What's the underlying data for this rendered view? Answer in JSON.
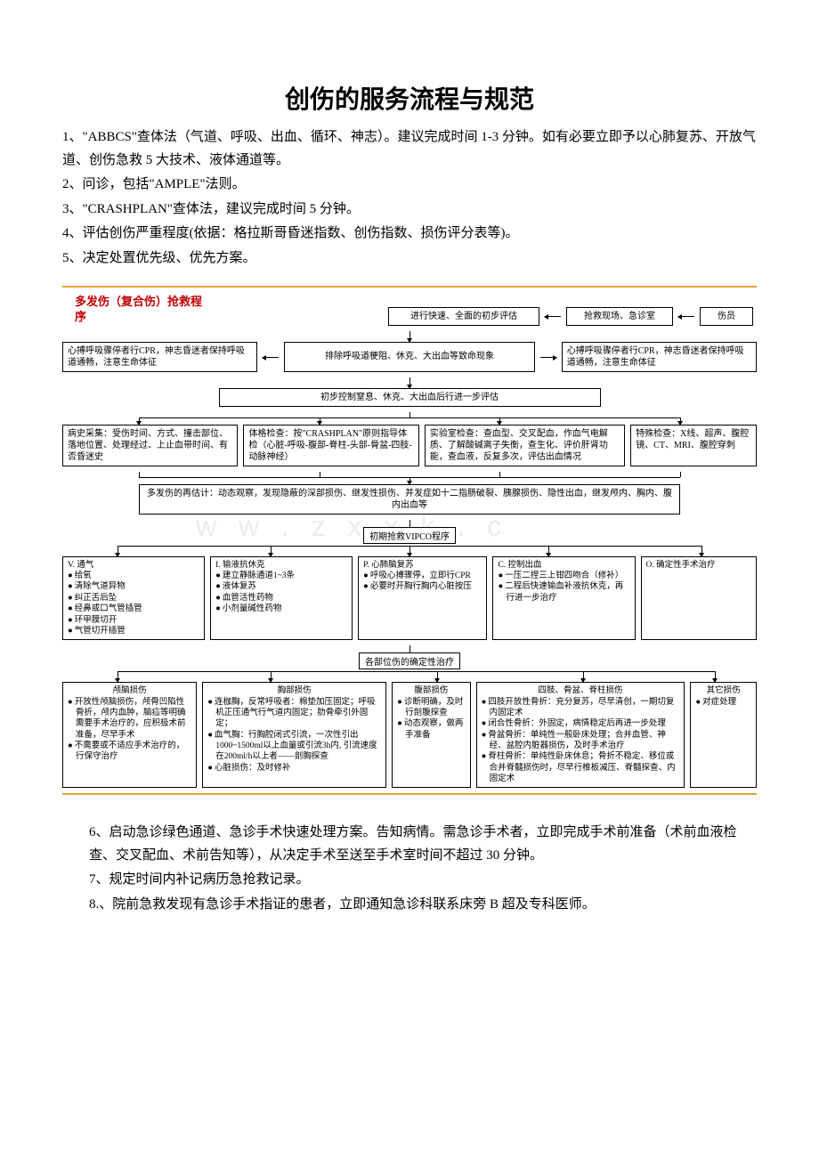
{
  "title": "创伤的服务流程与规范",
  "intro": {
    "p1": "1、\"ABBCS\"查体法（气道、呼吸、出血、循环、神志）。建议完成时间 1-3 分钟。如有必要立即予以心肺复苏、开放气道、创伤急救 5 大技术、液体通道等。",
    "p2": "2、问诊，包括\"AMPLE\"法则。",
    "p3": "3、\"CRASHPLAN\"查体法，建议完成时间 5 分钟。",
    "p4": "4、评估创伤严重程度(依据：格拉斯哥昏迷指数、创伤指数、损伤评分表等)。",
    "p5": "5、决定处置优先级、优先方案。"
  },
  "chart": {
    "title_l1": "多发伤（复合伤）抢救程",
    "title_l2": "序",
    "row1": {
      "assess": "进行快速、全面的初步评估",
      "scene": "抢救现场、急诊室",
      "patient": "伤员"
    },
    "row2": {
      "left": "心搏呼吸骤停者行CPR，神志昏迷者保持呼吸道通畅，注意生命体征",
      "mid": "排除呼吸道梗阻、休克、大出血等致命现象",
      "right": "心搏呼吸骤停者行CPR，神志昏迷者保持呼吸道通畅，注意生命体征"
    },
    "row3": "初步控制窒息、休克、大出血后行进一步评估",
    "row4": {
      "c1": "病史采集：受伤时间、方式、撞击部位、落地位置、处理经过、上止血带时间、有否昏迷史",
      "c2": "体格检查：按\"CRASHPLAN\"原则指导体检（心脏-呼吸-腹部-脊柱-头部-骨盆-四肢-动脉神经）",
      "c3": "实验室检查：查血型、交叉配血，作血气电解质、了解酸碱离子失衡，查生化、评价肝肾功能，查血液，反复多次，评估出血情况",
      "c4": "特殊检查：X线、超声、腹腔镜、CT、MRI、腹腔穿刺"
    },
    "row5": "多发伤的再估计：动态观察，发现隐蔽的深部损伤、继发性损伤、并发症如十二指肠破裂、胰腺损伤、隐性出血，继发颅内、胸内、腹内出血等",
    "vipco_label": "初期抢救VIPCO程序",
    "vipco": {
      "v_head": "V. 通气",
      "v_items": [
        "给氧",
        "清除气道异物",
        "纠正舌后坠",
        "经鼻或口气管插管",
        "环甲膜切开",
        "气管切开插管"
      ],
      "i_head": "I. 输液抗休克",
      "i_items": [
        "建立静脉通道1~3条",
        "液体复苏",
        "血管活性药物",
        "小剂量碱性药物"
      ],
      "p_head": "P. 心肺脑复苏",
      "p_items": [
        "呼吸心搏骤停，立即行CPR",
        "必要时开胸行胸内心脏按压"
      ],
      "c_head": "C. 控制出血",
      "c_items": [
        "一压二捏三上钳四吻合（修补）",
        "二程后快速输血补液抗休克，再行进一步治疗"
      ],
      "o_head": "O. 确定性手术治疗"
    },
    "final_label": "各部位伤的确定性治疗",
    "final": {
      "c1_head": "颅脑损伤",
      "c1_items": [
        "开放性颅脑损伤，颅骨凹陷性骨折，颅内血肿，脑疝等明确需要手术治疗的，应积极术前准备，尽早手术",
        "不需要或不适应手术治疗的，行保守治疗"
      ],
      "c2_head": "胸部损伤",
      "c2_items": [
        "连枷胸，反常呼吸者：棉垫加压固定；呼吸机正压通气行气道内固定；肋骨牵引外固定；",
        "血气胸：行胸腔闭式引流，一次性引出1000~1500ml以上血量或引流3h内, 引流速度在200ml/h以上者——剖胸探查",
        "心脏损伤：及时修补"
      ],
      "c3_head": "腹部损伤",
      "c3_items": [
        "诊断明确，及时行剖腹探查",
        "动态观察，做两手准备"
      ],
      "c4_head": "四肢、骨盆、脊柱损伤",
      "c4_items": [
        "四肢开放性骨折：充分复苏，尽早清创，一期切复内固定术",
        "闭合性骨折：外固定，病情稳定后再进一步处理",
        "骨盆骨折：单纯性一般卧床处理；合并血管、神经、盆腔内脏器损伤，及时手术治疗",
        "脊柱骨折：单纯性卧床休息；骨折不稳定、移位或合并脊髓损伤时，尽早行椎板减压、脊髓探查、内固定术"
      ],
      "c5_head": "其它损伤",
      "c5_items": [
        "对症处理"
      ]
    }
  },
  "outro": {
    "p6": "6、启动急诊绿色通道、急诊手术快速处理方案。告知病情。需急诊手术者，立即完成手术前准备（术前血液检查、交叉配血、术前告知等），从决定手术至送至手术室时间不超过 30 分钟。",
    "p7": "7、规定时间内补记病历急抢救记录。",
    "p8": "8.、院前急救发现有急诊手术指证的患者，立即通知急诊科联系床旁 B 超及专科医师。"
  },
  "colors": {
    "accent_border": "#e6a23c",
    "title_red": "#c00000",
    "text": "#000000",
    "bg": "#ffffff"
  }
}
